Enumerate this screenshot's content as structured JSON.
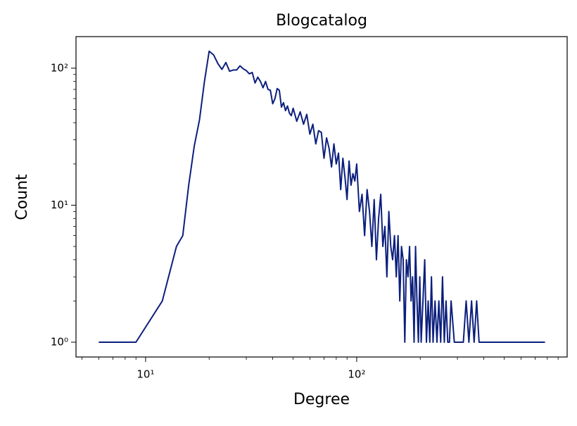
{
  "chart_data": {
    "type": "line",
    "title": "Blogcatalog",
    "x_label": "Degree",
    "y_label": "Count",
    "x": [
      6,
      9,
      12,
      14,
      15,
      16,
      17,
      18,
      19,
      20,
      21,
      22,
      23,
      24,
      25,
      26,
      27,
      28,
      29,
      30,
      31,
      32,
      33,
      34,
      35,
      36,
      37,
      38,
      39,
      40,
      41,
      42,
      43,
      44,
      45,
      46,
      47,
      48,
      49,
      50,
      52,
      54,
      56,
      58,
      60,
      62,
      64,
      66,
      68,
      70,
      72,
      74,
      76,
      78,
      80,
      82,
      84,
      86,
      88,
      90,
      92,
      94,
      96,
      98,
      100,
      103,
      106,
      109,
      112,
      115,
      118,
      121,
      124,
      127,
      130,
      133,
      136,
      139,
      142,
      145,
      148,
      151,
      154,
      157,
      160,
      163,
      166,
      169,
      172,
      175,
      178,
      181,
      184,
      187,
      190,
      193,
      196,
      199,
      202,
      206,
      210,
      214,
      218,
      222,
      226,
      230,
      235,
      240,
      245,
      250,
      255,
      260,
      265,
      270,
      275,
      280,
      290,
      300,
      310,
      320,
      330,
      340,
      350,
      360,
      370,
      380,
      390,
      400,
      780
    ],
    "values": [
      1,
      1,
      2,
      5,
      6,
      14,
      27,
      42,
      80,
      133,
      125,
      108,
      98,
      110,
      95,
      97,
      97,
      104,
      99,
      96,
      91,
      93,
      78,
      86,
      80,
      72,
      80,
      70,
      69,
      55,
      60,
      71,
      69,
      52,
      56,
      49,
      53,
      47,
      45,
      51,
      41,
      48,
      39,
      46,
      33,
      39,
      28,
      35,
      34,
      22,
      31,
      26,
      19,
      28,
      20,
      24,
      13,
      22,
      16,
      11,
      21,
      14,
      17,
      15,
      20,
      9,
      12,
      6,
      13,
      9,
      5,
      11,
      4,
      8,
      12,
      5,
      7,
      3,
      9,
      5,
      4,
      6,
      3,
      6,
      2,
      5,
      4,
      1,
      4,
      3,
      5,
      2,
      3,
      1,
      5,
      2,
      1,
      3,
      1,
      2,
      4,
      1,
      2,
      1,
      3,
      1,
      2,
      1,
      2,
      1,
      3,
      1,
      2,
      1,
      1,
      2,
      1,
      1,
      1,
      1,
      2,
      1,
      2,
      1,
      2,
      1,
      1,
      1,
      1
    ],
    "color": "#0c1f7c",
    "log_x": true,
    "log_y": true,
    "xlim": [
      4.68,
      993
    ],
    "ylim": [
      0.78,
      170
    ],
    "xticks": [
      {
        "value": 10,
        "label": "10¹"
      },
      {
        "value": 100,
        "label": "10²"
      }
    ],
    "yticks": [
      {
        "value": 1,
        "label": "10⁰"
      },
      {
        "value": 10,
        "label": "10¹"
      },
      {
        "value": 100,
        "label": "10²"
      }
    ],
    "xticks_minor": [
      5,
      6,
      7,
      8,
      9,
      20,
      30,
      40,
      50,
      60,
      70,
      80,
      90,
      200,
      300,
      400,
      500,
      600,
      700,
      800,
      900
    ],
    "yticks_minor": [
      2,
      3,
      4,
      5,
      6,
      7,
      8,
      9,
      20,
      30,
      40,
      50,
      60,
      70,
      80,
      90
    ]
  }
}
